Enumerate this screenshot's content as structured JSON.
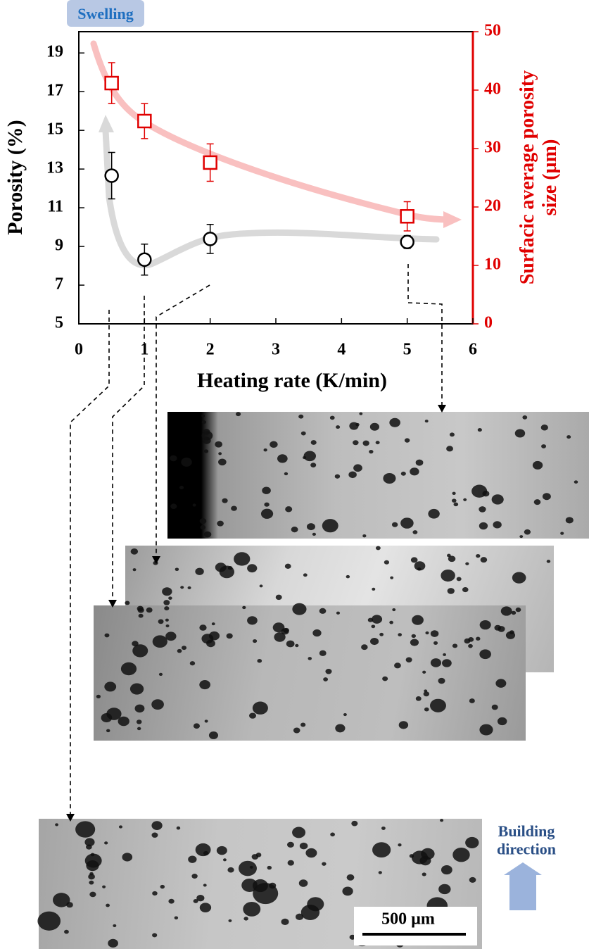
{
  "chart_data": {
    "type": "scatter",
    "x": [
      0.5,
      1,
      2,
      5
    ],
    "xlabel": "Heating rate (K/min)",
    "ylabel": "Porosity (%)",
    "y2label": "Surfacic average porosity\nsize (µm)",
    "xlim": [
      0,
      6
    ],
    "xticks": [
      0,
      1,
      2,
      3,
      4,
      5,
      6
    ],
    "ylim": [
      5,
      20.1
    ],
    "yticks": [
      5,
      7,
      9,
      11,
      13,
      15,
      17,
      19
    ],
    "y2lim": [
      0,
      50
    ],
    "y2ticks": [
      0,
      10,
      20,
      30,
      40,
      50
    ],
    "series": [
      {
        "name": "Porosity",
        "color": "#000000",
        "marker": "circle",
        "values": [
          12.66,
          8.32,
          9.39,
          9.23
        ],
        "errors": [
          1.2,
          0.8,
          0.75,
          0.33
        ]
      },
      {
        "name": "Surfacic average porosity size",
        "color": "#e00000",
        "marker": "square",
        "axis": "y2",
        "values": [
          41.2,
          34.7,
          27.6,
          18.4
        ],
        "errors": [
          3.5,
          3,
          3.2,
          2.5
        ]
      }
    ],
    "annotations": {
      "swelling": "Swelling",
      "building": "Building\ndirection",
      "scale": "500 µm"
    }
  }
}
